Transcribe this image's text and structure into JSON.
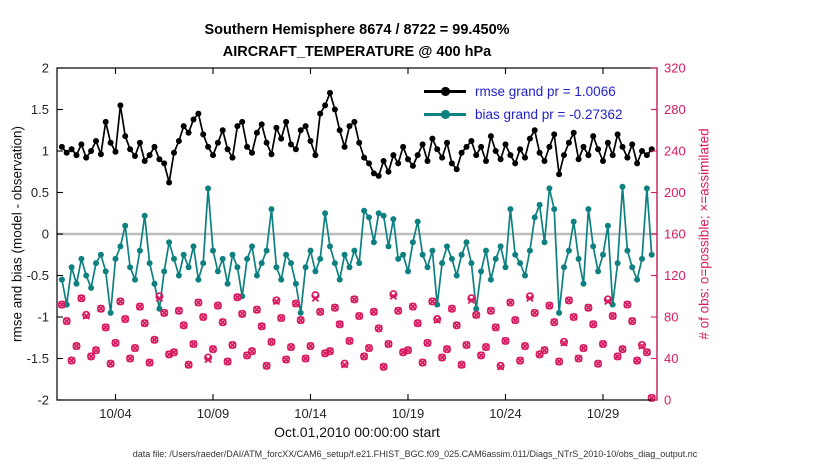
{
  "figure": {
    "title_line1": "Southern Hemisphere 8674 / 8722 = 99.450%",
    "title_line2": "AIRCRAFT_TEMPERATURE @ 400 hPa",
    "xlabel": "Oct.01,2010 00:00:00 start",
    "ylabel_left": "rmse and bias (model - observation)",
    "ylabel_right": "# of obs: o=possible; ×=assimilated",
    "footer": "data file: /Users/raeder/DAI/ATM_forcXX/CAM6_setup/f.e21.FHIST_BGC.f09_025.CAM6assim.011/Diags_NTrS_2010-10/obs_diag_output.nc",
    "legend": [
      {
        "label": "rmse grand pr = 1.0066",
        "color": "#000000"
      },
      {
        "label": "bias grand pr = -0.27362",
        "color": "#0e8080"
      }
    ],
    "colors": {
      "rmse": "#000000",
      "bias": "#0e8080",
      "obs": "#d81b60",
      "zero_line": "#bdbdbd",
      "legend_text": "#2222cc"
    }
  },
  "chart_data": {
    "type": "line",
    "title": "Southern Hemisphere 8674 / 8722 = 99.450%",
    "subtitle": "AIRCRAFT_TEMPERATURE @ 400 hPa",
    "grid": false,
    "legend_position": "upper-right-inside",
    "zero_reference_line": 0,
    "x": {
      "label": "Oct.01,2010 00:00:00 start",
      "start_day": 0.25,
      "step_days": 0.25,
      "num_points": 122,
      "range": [
        0,
        30.77
      ],
      "tick_positions_days": [
        3,
        8,
        13,
        18,
        23,
        28
      ],
      "tick_labels": [
        "10/04",
        "10/09",
        "10/14",
        "10/19",
        "10/24",
        "10/29"
      ]
    },
    "y_left": {
      "label": "rmse and bias (model - observation)",
      "range": [
        -2,
        2
      ],
      "ticks": [
        -2,
        -1.5,
        -1,
        -0.5,
        0,
        0.5,
        1,
        1.5,
        2
      ]
    },
    "y_right": {
      "label": "# of obs: o=possible; ×=assimilated",
      "range": [
        0,
        320
      ],
      "ticks": [
        0,
        40,
        80,
        120,
        160,
        200,
        240,
        280,
        320
      ]
    },
    "series": [
      {
        "name": "rmse",
        "axis": "left",
        "marker": "line-dot",
        "color": "#000000",
        "grand_value": 1.0066,
        "values": [
          1.05,
          0.98,
          1.02,
          0.95,
          1.08,
          0.92,
          1.0,
          1.12,
          0.96,
          1.35,
          1.1,
          0.99,
          1.55,
          1.18,
          1.02,
          0.94,
          1.1,
          0.88,
          0.95,
          1.05,
          0.9,
          0.85,
          0.62,
          0.98,
          1.12,
          1.3,
          1.22,
          1.38,
          1.45,
          1.2,
          1.05,
          0.95,
          1.1,
          1.25,
          1.02,
          0.92,
          1.3,
          1.35,
          1.05,
          0.98,
          1.22,
          1.32,
          1.1,
          0.96,
          1.28,
          1.15,
          1.35,
          1.08,
          1.02,
          1.25,
          1.3,
          1.12,
          0.95,
          1.45,
          1.55,
          1.7,
          1.5,
          1.25,
          1.05,
          1.3,
          1.35,
          1.1,
          0.92,
          0.85,
          0.73,
          0.7,
          0.88,
          0.75,
          0.95,
          0.85,
          1.05,
          0.9,
          0.82,
          0.95,
          1.08,
          0.88,
          1.15,
          1.02,
          0.92,
          1.1,
          0.85,
          0.78,
          0.98,
          1.05,
          1.12,
          0.95,
          1.05,
          0.88,
          1.18,
          1.0,
          0.9,
          1.08,
          0.95,
          0.85,
          1.02,
          0.92,
          1.15,
          1.25,
          0.98,
          0.88,
          1.05,
          1.2,
          0.72,
          0.95,
          1.1,
          1.22,
          0.9,
          1.05,
          0.95,
          1.18,
          1.02,
          0.88,
          1.1,
          0.95,
          1.2,
          1.05,
          0.92,
          1.08,
          0.85,
          1.0,
          0.95,
          1.02
        ]
      },
      {
        "name": "bias",
        "axis": "left",
        "marker": "line-dot",
        "color": "#0e8080",
        "grand_value": -0.27362,
        "values": [
          -0.55,
          -0.85,
          -0.4,
          -0.6,
          -0.3,
          -0.5,
          -0.65,
          -0.35,
          -0.25,
          -0.45,
          -0.95,
          -0.3,
          -0.15,
          0.1,
          -0.4,
          -0.55,
          -0.2,
          0.22,
          -0.35,
          -0.6,
          -0.9,
          -0.45,
          -0.1,
          -0.3,
          -0.5,
          -0.25,
          -0.4,
          -0.15,
          -0.55,
          -0.35,
          0.55,
          -0.2,
          -0.45,
          -0.3,
          -0.6,
          -0.25,
          -0.4,
          -0.75,
          -0.3,
          -0.15,
          -0.5,
          -0.35,
          -0.2,
          0.3,
          -0.4,
          -0.55,
          -0.25,
          -0.35,
          -0.6,
          -0.95,
          -0.4,
          -0.2,
          -0.45,
          -0.3,
          0.25,
          -0.15,
          -0.35,
          -0.55,
          -0.25,
          -0.4,
          -0.2,
          -0.35,
          0.28,
          0.2,
          -0.1,
          0.25,
          0.22,
          -0.15,
          0.18,
          -0.3,
          -0.25,
          -0.45,
          -0.1,
          0.15,
          -0.25,
          -0.4,
          -0.2,
          -0.85,
          -0.35,
          -0.15,
          -0.3,
          -0.5,
          -0.25,
          -0.1,
          -0.35,
          -0.9,
          -0.45,
          -0.2,
          -0.55,
          -0.3,
          -0.15,
          -0.4,
          0.3,
          -0.25,
          -0.35,
          -0.5,
          -0.2,
          0.2,
          0.35,
          -0.1,
          0.55,
          0.3,
          -0.95,
          -0.4,
          -0.2,
          0.15,
          -0.3,
          -0.6,
          0.3,
          -0.15,
          -0.45,
          -0.25,
          0.1,
          -0.85,
          -0.35,
          0.57,
          -0.2,
          -0.4,
          -0.55,
          -0.3,
          0.55,
          -0.25
        ]
      },
      {
        "name": "possible obs",
        "axis": "right",
        "marker": "open-circle",
        "color": "#d81b60",
        "total": 8722,
        "values": [
          92,
          76,
          38,
          52,
          98,
          82,
          42,
          48,
          88,
          70,
          35,
          55,
          95,
          78,
          40,
          50,
          90,
          74,
          36,
          58,
          100,
          84,
          44,
          46,
          86,
          72,
          34,
          54,
          94,
          80,
          41,
          49,
          91,
          75,
          37,
          53,
          99,
          83,
          43,
          47,
          87,
          71,
          33,
          56,
          96,
          79,
          39,
          51,
          93,
          77,
          40,
          52,
          101,
          85,
          45,
          47,
          89,
          73,
          35,
          57,
          97,
          81,
          42,
          50,
          85,
          69,
          32,
          54,
          102,
          86,
          46,
          48,
          90,
          74,
          36,
          55,
          95,
          78,
          41,
          49,
          88,
          72,
          34,
          53,
          98,
          82,
          43,
          51,
          86,
          70,
          33,
          57,
          94,
          77,
          38,
          52,
          100,
          84,
          44,
          48,
          91,
          75,
          37,
          56,
          96,
          80,
          40,
          50,
          89,
          73,
          35,
          54,
          97,
          81,
          42,
          49,
          92,
          76,
          38,
          53,
          46,
          2
        ]
      },
      {
        "name": "assimilated obs",
        "axis": "right",
        "marker": "cross",
        "color": "#d81b60",
        "total": 8674,
        "values": [
          92,
          76,
          38,
          52,
          98,
          81,
          42,
          48,
          88,
          70,
          35,
          55,
          95,
          78,
          40,
          50,
          90,
          74,
          36,
          58,
          98,
          84,
          44,
          46,
          86,
          72,
          34,
          54,
          94,
          80,
          39,
          49,
          91,
          75,
          37,
          53,
          99,
          83,
          43,
          47,
          87,
          71,
          33,
          56,
          95,
          79,
          39,
          51,
          93,
          77,
          40,
          52,
          98,
          85,
          45,
          47,
          89,
          73,
          34,
          57,
          97,
          81,
          42,
          50,
          85,
          69,
          32,
          54,
          100,
          86,
          46,
          48,
          90,
          74,
          36,
          55,
          95,
          77,
          41,
          49,
          88,
          72,
          34,
          53,
          96,
          82,
          43,
          51,
          86,
          70,
          32,
          57,
          94,
          77,
          38,
          52,
          98,
          84,
          44,
          48,
          91,
          75,
          37,
          55,
          96,
          80,
          40,
          50,
          89,
          73,
          35,
          54,
          95,
          81,
          42,
          49,
          92,
          76,
          38,
          52,
          46,
          2
        ]
      }
    ]
  }
}
